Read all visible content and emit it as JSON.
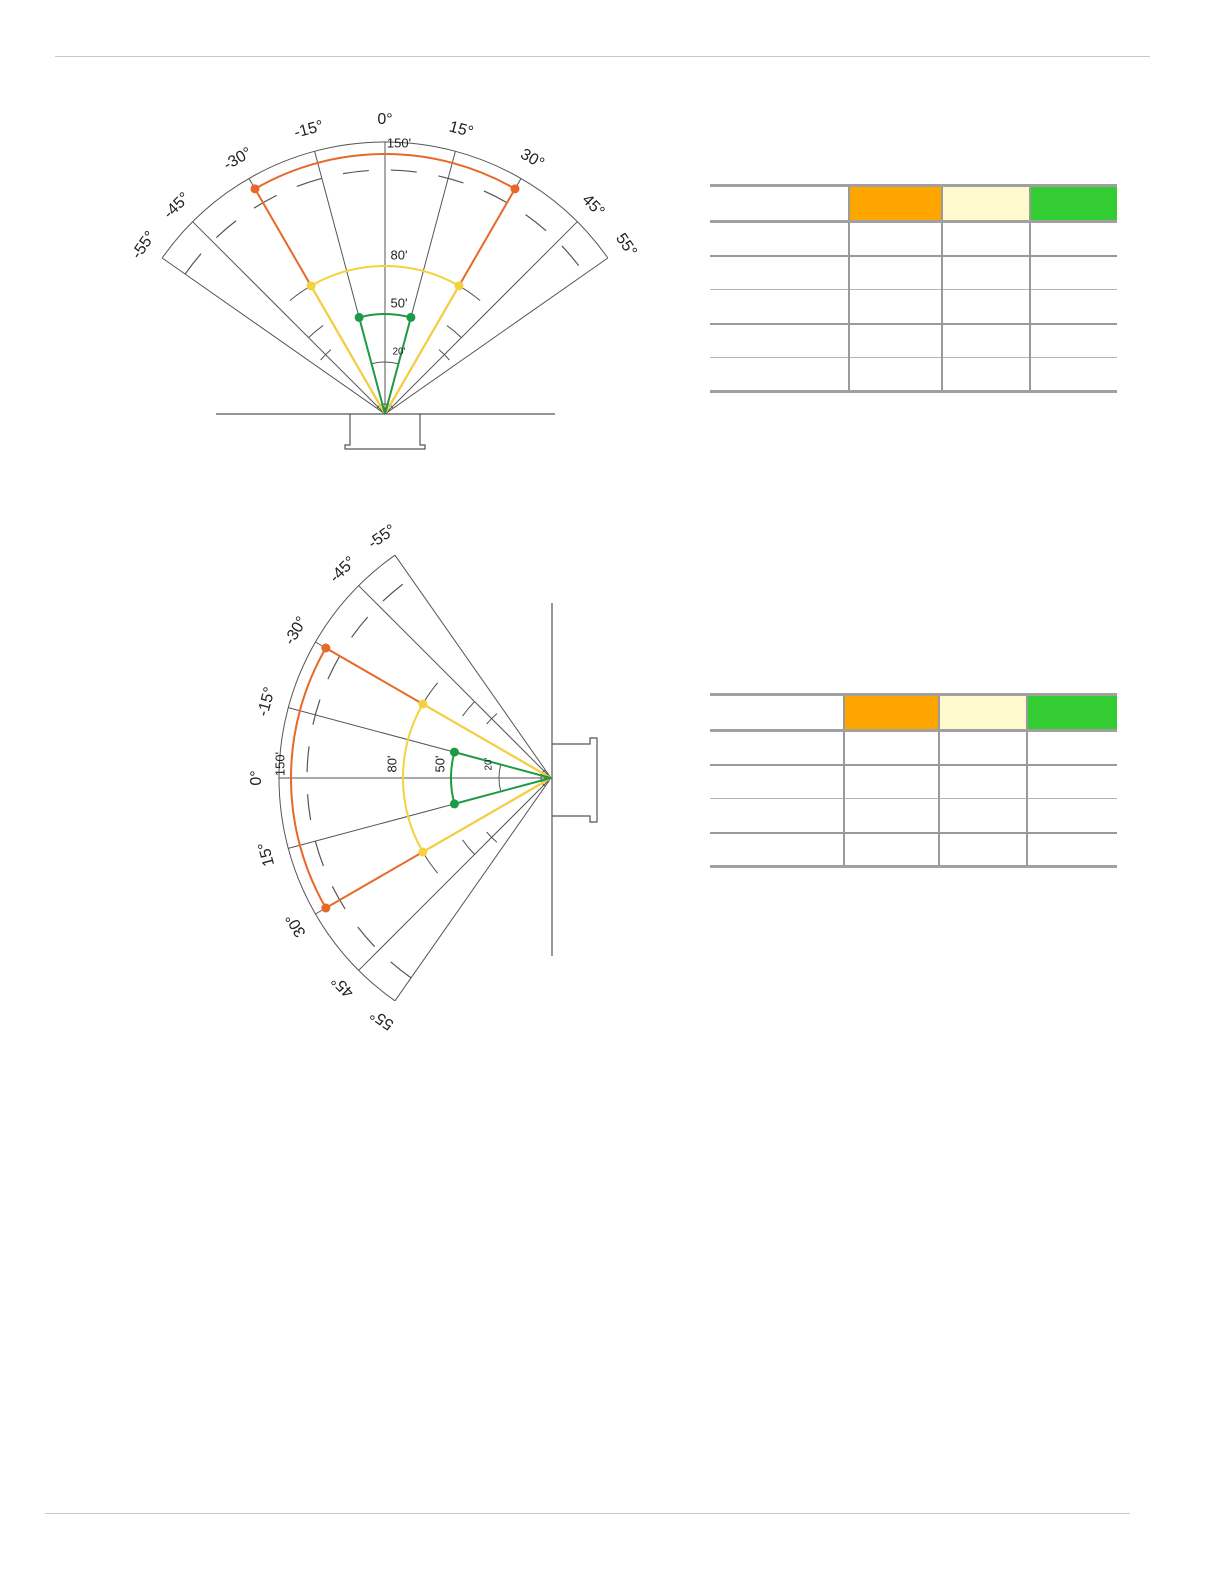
{
  "colors": {
    "long_range": "#e8682a",
    "mid_range": "#f4d23c",
    "short_range": "#1e9a45",
    "grid": "#555555",
    "header_orange": "#ffa500",
    "header_cream": "#fffacd",
    "header_green": "#33cc33"
  },
  "diagrams": [
    {
      "id": "top-view",
      "angle_labels": [
        "-55°",
        "-45°",
        "-30°",
        "-15°",
        "0°",
        "15°",
        "30°",
        "45°",
        "55°"
      ],
      "range_labels": [
        "150'",
        "80'",
        "50'",
        "20'"
      ],
      "zones": [
        {
          "zone": "long_range",
          "range_ft": 150,
          "half_angle_deg": 30
        },
        {
          "zone": "mid_range",
          "range_ft": 80,
          "half_angle_deg": 30
        },
        {
          "zone": "short_range",
          "range_ft": 50,
          "half_angle_deg": 15
        }
      ]
    },
    {
      "id": "side-view",
      "angle_labels": [
        "55°",
        "45°",
        "30°",
        "15°",
        "0°",
        "-15°",
        "-30°",
        "-45°",
        "-55°"
      ],
      "range_labels": [
        "150'",
        "80'",
        "50'",
        "20'"
      ],
      "zones": [
        {
          "zone": "long_range",
          "range_ft": 150,
          "half_angle_deg": 30
        },
        {
          "zone": "mid_range",
          "range_ft": 80,
          "half_angle_deg": 30
        },
        {
          "zone": "short_range",
          "range_ft": 50,
          "half_angle_deg": 15
        }
      ]
    }
  ],
  "tables": [
    {
      "id": "table-1",
      "header": [
        "",
        "",
        "",
        ""
      ],
      "rows": [
        [
          "",
          "",
          "",
          ""
        ],
        [
          "",
          "",
          "",
          ""
        ],
        [
          "",
          "",
          "",
          ""
        ],
        [
          "",
          "",
          "",
          ""
        ],
        [
          "",
          "",
          "",
          ""
        ]
      ]
    },
    {
      "id": "table-2",
      "header": [
        "",
        "",
        "",
        ""
      ],
      "rows": [
        [
          "",
          "",
          "",
          ""
        ],
        [
          "",
          "",
          "",
          ""
        ],
        [
          "",
          "",
          "",
          ""
        ],
        [
          "",
          "",
          "",
          ""
        ]
      ]
    }
  ]
}
